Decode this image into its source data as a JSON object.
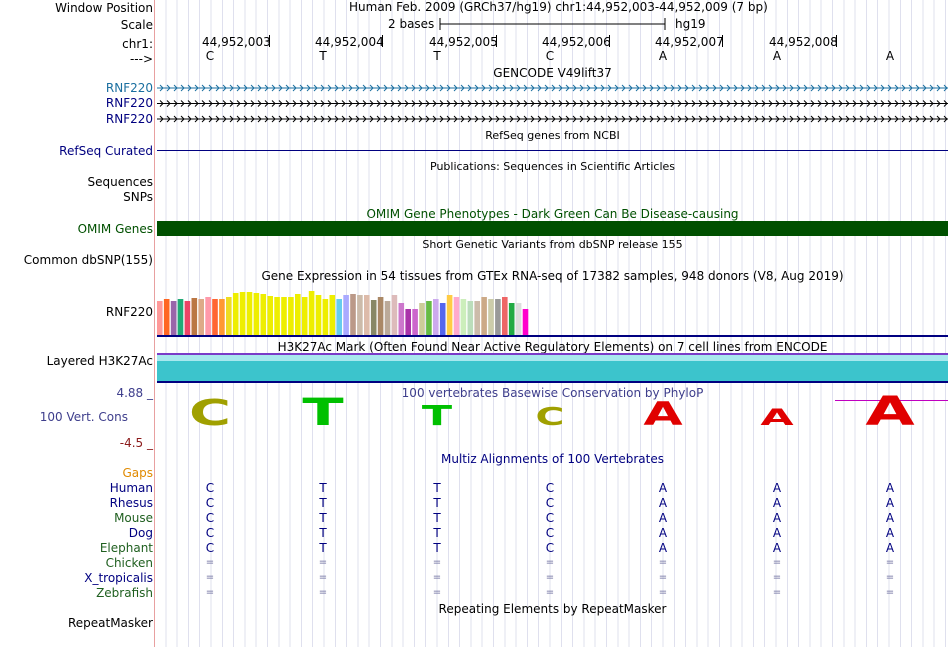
{
  "header": {
    "window_position_label": "Window Position",
    "window_position_value": "Human Feb. 2009 (GRCh37/hg19)   chr1:44,952,003-44,952,009 (7 bp)",
    "scale_label": "Scale",
    "scale_value": "2 bases",
    "scale_assembly": "hg19",
    "chrom_label": "chr1:",
    "strand_label": "--->",
    "coordinates": [
      "44,952,003",
      "44,952,004",
      "44,952,005",
      "44,952,006",
      "44,952,007",
      "44,952,008"
    ],
    "bases": [
      "C",
      "T",
      "T",
      "C",
      "A",
      "A",
      "A"
    ]
  },
  "tracks": {
    "gencode": {
      "title": "GENCODE V49lift37",
      "rows": [
        "RNF220",
        "RNF220",
        "RNF220"
      ]
    },
    "refseq": {
      "title": "RefSeq genes from NCBI",
      "label": "RefSeq Curated"
    },
    "publications": {
      "title": "Publications: Sequences in Scientific Articles",
      "labels": [
        "Sequences",
        "SNPs"
      ]
    },
    "omim": {
      "title": "OMIM Gene Phenotypes - Dark Green Can Be Disease-causing",
      "label": "OMIM Genes",
      "color": "#005000"
    },
    "dbsnp": {
      "title": "Short Genetic Variants from dbSNP release 155",
      "label": "Common dbSNP(155)"
    },
    "gtex": {
      "title": "Gene Expression in 54 tissues from GTEx RNA-seq of 17382 samples, 948 donors (V8, Aug 2019)",
      "label": "RNF220"
    },
    "h3k27ac": {
      "title": "H3K27Ac Mark (Often Found Near Active Regulatory Elements) on 7 cell lines from ENCODE",
      "label": "Layered H3K27Ac"
    },
    "phylop": {
      "title": "100 vertebrates Basewise Conservation by PhyloP",
      "label": "100 Vert. Cons",
      "ymax": "4.88 _",
      "ymin": "-4.5 _",
      "bases": [
        "C",
        "T",
        "T",
        "C",
        "A",
        "A",
        "A"
      ],
      "scores": [
        2.2,
        2.4,
        1.4,
        1.1,
        1.8,
        0.9,
        2.6
      ]
    },
    "multiz": {
      "title": "Multiz Alignments of 100 Vertebrates",
      "gaps_label": "Gaps",
      "species": [
        {
          "name": "Human",
          "row": [
            "C",
            "T",
            "T",
            "C",
            "A",
            "A",
            "A"
          ]
        },
        {
          "name": "Rhesus",
          "row": [
            "C",
            "T",
            "T",
            "C",
            "A",
            "A",
            "A"
          ]
        },
        {
          "name": "Mouse",
          "row": [
            "C",
            "T",
            "T",
            "C",
            "A",
            "A",
            "A"
          ]
        },
        {
          "name": "Dog",
          "row": [
            "C",
            "T",
            "T",
            "C",
            "A",
            "A",
            "A"
          ]
        },
        {
          "name": "Elephant",
          "row": [
            "C",
            "T",
            "T",
            "C",
            "A",
            "A",
            "A"
          ]
        },
        {
          "name": "Chicken",
          "row": [
            "=",
            "=",
            "=",
            "=",
            "=",
            "=",
            "="
          ]
        },
        {
          "name": "X_tropicalis",
          "row": [
            "=",
            "=",
            "=",
            "=",
            "=",
            "=",
            "="
          ]
        },
        {
          "name": "Zebrafish",
          "row": [
            "=",
            "=",
            "=",
            "=",
            "=",
            "=",
            "="
          ]
        }
      ]
    },
    "repeatmasker": {
      "title": "Repeating Elements by RepeatMasker",
      "label": "RepeatMasker"
    }
  },
  "colors": {
    "blue_label": "#000080",
    "gencode_label": "#1a6fa0",
    "omim": "#005000",
    "phylop_axis": "#3e3e8c",
    "phylop_min": "#8b1a1a",
    "gaps": "#e08a00",
    "mammal": "#000080",
    "green_species": "#1f5f1f",
    "h3k27ac": "#3cc4cc",
    "h3k27ac_border": "#000080",
    "phylop_cons": "#c0001a"
  }
}
